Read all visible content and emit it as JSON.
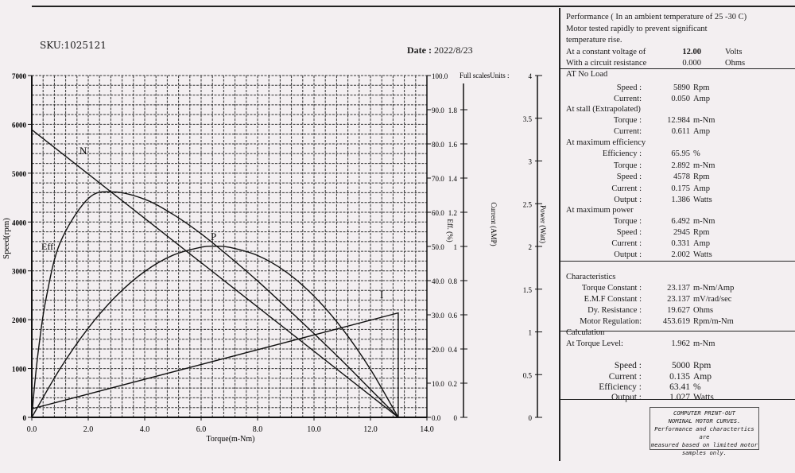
{
  "header": {
    "sku": "SKU:1025121",
    "date_label": "Date :",
    "date_value": "2022/8/23"
  },
  "chart_data": {
    "type": "line",
    "title": "",
    "xlabel": "Torque(m-Nm)",
    "xlim": [
      0,
      14
    ],
    "x_ticks": [
      "0.0",
      "2.0",
      "4.0",
      "6.0",
      "8.0",
      "10.0",
      "12.0",
      "14.0"
    ],
    "axes": {
      "speed": {
        "label": "Speed(rpm)",
        "lim": [
          0,
          7000
        ],
        "ticks": [
          "0",
          "1000",
          "2000",
          "3000",
          "4000",
          "5000",
          "6000",
          "7000"
        ]
      },
      "efficiency": {
        "label": "Eff. (%)",
        "lim": [
          0,
          100
        ],
        "ticks": [
          "0.0",
          "10.0",
          "20.0",
          "30.0",
          "40.0",
          "50.0",
          "60.0",
          "70.0",
          "80.0",
          "90.0",
          "100.0"
        ]
      },
      "current": {
        "label": "Current (AMP)",
        "lim": [
          0,
          2
        ],
        "ticks": [
          "0",
          "0.2",
          "0.4",
          "0.6",
          "0.8",
          "1",
          "1.2",
          "1.4",
          "1.6",
          "1.8"
        ]
      },
      "power": {
        "label": "Power (Watt)",
        "lim": [
          0,
          4
        ],
        "ticks": [
          "0",
          "0.5",
          "1",
          "1.5",
          "2",
          "2.5",
          "3",
          "3.5",
          "4"
        ]
      }
    },
    "full_scale_label": "Full scalesUnits :",
    "grid": true,
    "series": [
      {
        "name": "N",
        "axis": "speed",
        "x": [
          0,
          12.984
        ],
        "y": [
          5890,
          0
        ]
      },
      {
        "name": "I",
        "axis": "current",
        "x": [
          0,
          12.984,
          12.984
        ],
        "y": [
          0.05,
          0.611,
          0
        ]
      },
      {
        "name": "P",
        "axis": "power",
        "x": [
          0,
          1,
          2,
          3,
          4,
          5,
          6,
          6.492,
          7,
          8,
          9,
          10,
          11,
          12,
          12.984
        ],
        "y": [
          0,
          0.569,
          1.044,
          1.423,
          1.707,
          1.897,
          1.991,
          2.002,
          1.99,
          1.894,
          1.704,
          1.418,
          1.038,
          0.562,
          0
        ]
      },
      {
        "name": "Eff",
        "axis": "efficiency",
        "x": [
          0,
          0.1,
          0.25,
          0.5,
          1,
          2,
          2.892,
          4,
          5,
          6,
          7,
          8,
          9,
          10,
          11,
          12,
          12.984
        ],
        "y": [
          0,
          9.5,
          20.7,
          34.5,
          51.0,
          64.0,
          65.95,
          63.8,
          59.4,
          53.7,
          47.0,
          39.9,
          32.3,
          24.5,
          16.5,
          8.2,
          0
        ]
      }
    ]
  },
  "panel": {
    "intro": [
      "Performance ( In an ambient temperature of 25 -30 C)",
      "Motor tested rapidly to prevent significant",
      "temperature rise."
    ],
    "voltage": {
      "label": "At  a  constant  voltage of",
      "value": "12.00",
      "unit": "Volts"
    },
    "resistance": {
      "label": "With a circuit resistance",
      "value": "0.000",
      "unit": "Ohms"
    },
    "sections": [
      {
        "title": "AT No Load",
        "rows": [
          {
            "label": "Speed :",
            "value": "5890",
            "unit": "Rpm"
          },
          {
            "label": "Current:",
            "value": "0.050",
            "unit": "Amp"
          }
        ]
      },
      {
        "title": "At stall (Extrapolated)",
        "rows": [
          {
            "label": "Torque :",
            "value": "12.984",
            "unit": "m-Nm"
          },
          {
            "label": "Current:",
            "value": "0.611",
            "unit": "Amp"
          }
        ]
      },
      {
        "title": "At maximum efficiency",
        "rows": [
          {
            "label": "Efficiency :",
            "value": "65.95",
            "unit": "%"
          },
          {
            "label": "Torque :",
            "value": "2.892",
            "unit": "m-Nm"
          },
          {
            "label": "Speed :",
            "value": "4578",
            "unit": "Rpm"
          },
          {
            "label": "Current :",
            "value": "0.175",
            "unit": "Amp"
          },
          {
            "label": "Output :",
            "value": "1.386",
            "unit": "Watts"
          }
        ]
      },
      {
        "title": "At maximum power",
        "rows": [
          {
            "label": "Torque :",
            "value": "6.492",
            "unit": "m-Nm"
          },
          {
            "label": "Speed :",
            "value": "2945",
            "unit": "Rpm"
          },
          {
            "label": "Current :",
            "value": "0.331",
            "unit": "Amp"
          },
          {
            "label": "Output :",
            "value": "2.002",
            "unit": "Watts"
          }
        ]
      },
      {
        "title": "Characteristics",
        "rows": [
          {
            "label": "Torque Constant :",
            "value": "23.137",
            "unit": "m-Nm/Amp"
          },
          {
            "label": "E.M.F Constant :",
            "value": "23.137",
            "unit": "mV/rad/sec"
          },
          {
            "label": "Dy. Resistance   :",
            "value": "19.627",
            "unit": "Ohms"
          },
          {
            "label": "Motor Regulation:",
            "value": "453.619",
            "unit": "Rpm/m-Nm"
          }
        ]
      },
      {
        "title": "Calculation",
        "rows": [
          {
            "label": "At Torque Level:",
            "value": "1.962",
            "unit": "m-Nm"
          },
          {
            "label": "Speed :",
            "value": "5000",
            "unit": "Rpm"
          },
          {
            "label": "Current :",
            "value": "0.135",
            "unit": "Amp"
          },
          {
            "label": "Efficiency :",
            "value": "63.41",
            "unit": "%"
          },
          {
            "label": "Output :",
            "value": "1.027",
            "unit": "Watts"
          }
        ]
      }
    ],
    "note": [
      "COMPUTER PRINT-OUT",
      "NOMINAL MOTOR CURVES.",
      "Performance and charactertics are",
      "measured based on limited motor",
      "samples only."
    ]
  }
}
